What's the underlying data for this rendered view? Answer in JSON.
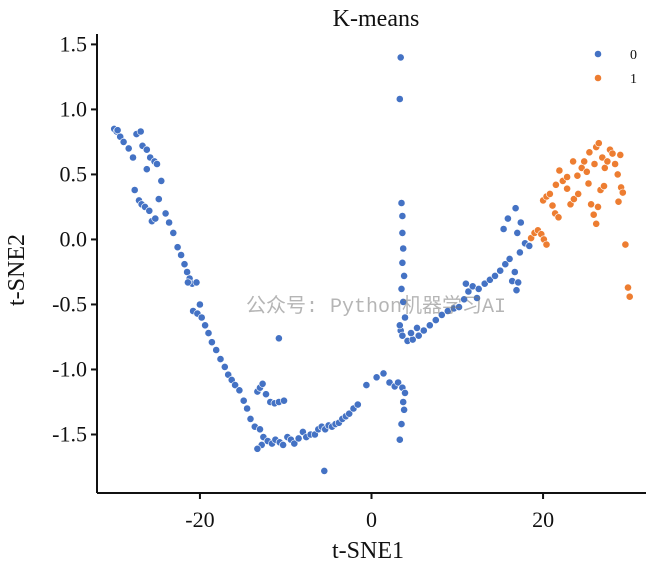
{
  "chart_data": {
    "type": "scatter",
    "title": "K-means",
    "xlabel": "t-SNE1",
    "ylabel": "t-SNE2",
    "xlim": [
      -32,
      32
    ],
    "ylim": [
      -1.95,
      1.58
    ],
    "xticks": [
      -20,
      0,
      20
    ],
    "xtick_labels": [
      "-20",
      "0",
      "20"
    ],
    "yticks": [
      1.5,
      1.0,
      0.5,
      0.0,
      -0.5,
      -1.0,
      -1.5
    ],
    "ytick_labels": [
      "1.5",
      "1.0",
      "0.5",
      "0.0",
      "-0.5",
      "-1.0",
      "-1.5"
    ],
    "legend": {
      "position": "top-right",
      "entries": [
        {
          "label": "0",
          "color": "#4472c4"
        },
        {
          "label": "1",
          "color": "#ed7d31"
        }
      ]
    },
    "series": [
      {
        "name": "0",
        "color": "#4472c4",
        "points": [
          [
            -30.0,
            0.85
          ],
          [
            -29.7,
            0.83
          ],
          [
            -29.3,
            0.79
          ],
          [
            -28.9,
            0.75
          ],
          [
            -28.3,
            0.7
          ],
          [
            -27.8,
            0.63
          ],
          [
            -27.4,
            0.81
          ],
          [
            -26.9,
            0.83
          ],
          [
            -26.7,
            0.72
          ],
          [
            -26.2,
            0.69
          ],
          [
            -25.8,
            0.63
          ],
          [
            -25.3,
            0.6
          ],
          [
            -25.0,
            0.58
          ],
          [
            -27.6,
            0.38
          ],
          [
            -27.1,
            0.3
          ],
          [
            -26.8,
            0.27
          ],
          [
            -26.4,
            0.25
          ],
          [
            -25.9,
            0.22
          ],
          [
            -25.6,
            0.14
          ],
          [
            -25.2,
            0.16
          ],
          [
            -24.8,
            0.31
          ],
          [
            -24.5,
            0.45
          ],
          [
            -24.0,
            0.2
          ],
          [
            -23.6,
            0.13
          ],
          [
            -23.1,
            0.05
          ],
          [
            -22.6,
            -0.06
          ],
          [
            -22.2,
            -0.12
          ],
          [
            -21.8,
            -0.19
          ],
          [
            -21.5,
            -0.25
          ],
          [
            -21.2,
            -0.3
          ],
          [
            -20.9,
            -0.34
          ],
          [
            -20.4,
            -0.33
          ],
          [
            -20.0,
            -0.5
          ],
          [
            -20.8,
            -0.55
          ],
          [
            -20.3,
            -0.57
          ],
          [
            -19.8,
            -0.6
          ],
          [
            -19.4,
            -0.66
          ],
          [
            -19.0,
            -0.72
          ],
          [
            -18.6,
            -0.79
          ],
          [
            -18.1,
            -0.85
          ],
          [
            -17.6,
            -0.92
          ],
          [
            -17.1,
            -0.98
          ],
          [
            -16.7,
            -1.04
          ],
          [
            -16.3,
            -1.08
          ],
          [
            -15.9,
            -1.12
          ],
          [
            -15.4,
            -1.16
          ],
          [
            -14.9,
            -1.24
          ],
          [
            -14.5,
            -1.3
          ],
          [
            -14.1,
            -1.38
          ],
          [
            -13.6,
            -1.44
          ],
          [
            -13.3,
            -1.17
          ],
          [
            -13.0,
            -1.14
          ],
          [
            -12.7,
            -1.11
          ],
          [
            -12.3,
            -1.19
          ],
          [
            -11.8,
            -1.25
          ],
          [
            -11.3,
            -1.26
          ],
          [
            -10.8,
            -1.25
          ],
          [
            -10.2,
            -1.24
          ],
          [
            -10.8,
            -0.76
          ],
          [
            -13.0,
            -1.46
          ],
          [
            -12.6,
            -1.52
          ],
          [
            -12.1,
            -1.55
          ],
          [
            -12.8,
            -1.58
          ],
          [
            -13.3,
            -1.61
          ],
          [
            -11.6,
            -1.57
          ],
          [
            -11.2,
            -1.54
          ],
          [
            -10.7,
            -1.56
          ],
          [
            -10.3,
            -1.58
          ],
          [
            -9.8,
            -1.52
          ],
          [
            -9.4,
            -1.54
          ],
          [
            -9.0,
            -1.57
          ],
          [
            -8.5,
            -1.53
          ],
          [
            -8.0,
            -1.48
          ],
          [
            -7.6,
            -1.52
          ],
          [
            -7.1,
            -1.5
          ],
          [
            -6.6,
            -1.5
          ],
          [
            -6.2,
            -1.46
          ],
          [
            -5.8,
            -1.44
          ],
          [
            -5.4,
            -1.46
          ],
          [
            -5.0,
            -1.43
          ],
          [
            -4.6,
            -1.44
          ],
          [
            -4.2,
            -1.42
          ],
          [
            -3.8,
            -1.41
          ],
          [
            -3.4,
            -1.38
          ],
          [
            -3.0,
            -1.36
          ],
          [
            -2.6,
            -1.34
          ],
          [
            -2.1,
            -1.3
          ],
          [
            -1.6,
            -1.27
          ],
          [
            -5.5,
            -1.78
          ],
          [
            -0.6,
            -1.12
          ],
          [
            0.6,
            -1.06
          ],
          [
            1.4,
            -1.03
          ],
          [
            2.1,
            -1.1
          ],
          [
            2.7,
            -1.13
          ],
          [
            3.1,
            -1.1
          ],
          [
            3.6,
            -1.14
          ],
          [
            3.9,
            -1.18
          ],
          [
            3.7,
            -1.25
          ],
          [
            3.8,
            -1.31
          ],
          [
            3.5,
            -1.42
          ],
          [
            3.3,
            -1.54
          ],
          [
            3.4,
            1.4
          ],
          [
            3.3,
            1.08
          ],
          [
            3.5,
            0.28
          ],
          [
            3.6,
            0.18
          ],
          [
            3.6,
            0.05
          ],
          [
            3.7,
            -0.07
          ],
          [
            3.6,
            -0.18
          ],
          [
            3.8,
            -0.28
          ],
          [
            3.5,
            -0.38
          ],
          [
            3.7,
            -0.48
          ],
          [
            3.9,
            -0.6
          ],
          [
            3.4,
            -0.7
          ],
          [
            3.6,
            -0.74
          ],
          [
            4.2,
            -0.78
          ],
          [
            4.8,
            -0.77
          ],
          [
            5.5,
            -0.74
          ],
          [
            6.1,
            -0.7
          ],
          [
            6.8,
            -0.66
          ],
          [
            7.5,
            -0.62
          ],
          [
            8.2,
            -0.58
          ],
          [
            8.9,
            -0.55
          ],
          [
            9.6,
            -0.53
          ],
          [
            10.2,
            -0.52
          ],
          [
            10.8,
            -0.46
          ],
          [
            11.3,
            -0.4
          ],
          [
            11.0,
            -0.34
          ],
          [
            11.8,
            -0.36
          ],
          [
            12.5,
            -0.38
          ],
          [
            13.2,
            -0.34
          ],
          [
            13.8,
            -0.31
          ],
          [
            14.4,
            -0.28
          ],
          [
            15.0,
            -0.24
          ],
          [
            15.6,
            -0.19
          ],
          [
            16.1,
            -0.15
          ],
          [
            16.7,
            -0.25
          ],
          [
            16.4,
            -0.32
          ],
          [
            16.9,
            -0.39
          ],
          [
            17.1,
            -0.33
          ],
          [
            17.3,
            -0.1
          ],
          [
            17.0,
            0.05
          ],
          [
            17.4,
            0.13
          ],
          [
            16.8,
            0.24
          ],
          [
            15.9,
            0.16
          ],
          [
            15.4,
            0.08
          ],
          [
            17.9,
            -0.03
          ],
          [
            18.4,
            -0.05
          ],
          [
            12.3,
            -0.45
          ],
          [
            5.3,
            -0.68
          ],
          [
            4.6,
            -0.72
          ],
          [
            3.3,
            -0.66
          ],
          [
            -21.4,
            -0.33
          ],
          [
            -29.6,
            0.84
          ],
          [
            -26.2,
            0.54
          ]
        ]
      },
      {
        "name": "1",
        "color": "#ed7d31",
        "points": [
          [
            18.6,
            0.01
          ],
          [
            19.0,
            0.05
          ],
          [
            19.4,
            0.07
          ],
          [
            19.8,
            0.04
          ],
          [
            20.1,
            0.0
          ],
          [
            20.4,
            -0.04
          ],
          [
            20.0,
            0.3
          ],
          [
            20.4,
            0.33
          ],
          [
            20.8,
            0.35
          ],
          [
            21.1,
            0.26
          ],
          [
            21.4,
            0.2
          ],
          [
            21.8,
            0.17
          ],
          [
            21.5,
            0.42
          ],
          [
            22.3,
            0.45
          ],
          [
            22.8,
            0.48
          ],
          [
            23.2,
            0.27
          ],
          [
            23.6,
            0.31
          ],
          [
            24.1,
            0.35
          ],
          [
            24.5,
            0.55
          ],
          [
            24.8,
            0.6
          ],
          [
            25.1,
            0.52
          ],
          [
            25.3,
            0.43
          ],
          [
            25.6,
            0.27
          ],
          [
            25.9,
            0.19
          ],
          [
            26.2,
            0.12
          ],
          [
            26.4,
            0.25
          ],
          [
            26.7,
            0.38
          ],
          [
            26.0,
            0.58
          ],
          [
            26.2,
            0.71
          ],
          [
            26.5,
            0.74
          ],
          [
            26.9,
            0.63
          ],
          [
            27.2,
            0.55
          ],
          [
            27.5,
            0.6
          ],
          [
            27.8,
            0.69
          ],
          [
            28.1,
            0.66
          ],
          [
            28.4,
            0.58
          ],
          [
            28.7,
            0.5
          ],
          [
            29.1,
            0.4
          ],
          [
            29.3,
            0.36
          ],
          [
            28.8,
            0.29
          ],
          [
            29.6,
            -0.04
          ],
          [
            29.9,
            -0.37
          ],
          [
            30.1,
            -0.44
          ],
          [
            24.0,
            0.49
          ],
          [
            23.5,
            0.6
          ],
          [
            22.8,
            0.39
          ],
          [
            21.9,
            0.53
          ],
          [
            25.4,
            0.67
          ],
          [
            27.1,
            0.41
          ],
          [
            29.0,
            0.65
          ]
        ]
      }
    ]
  },
  "watermark": "公众号: Python机器学习AI"
}
